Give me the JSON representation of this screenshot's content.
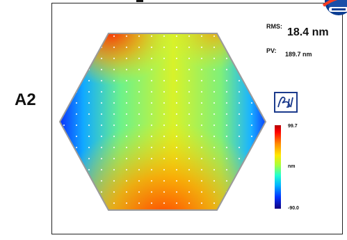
{
  "panel_label": "A2",
  "stats": {
    "rms_label": "RMS:",
    "rms_value": "18.4 nm",
    "pv_label": "PV:",
    "pv_value": "189.7 nm"
  },
  "colorbar": {
    "max": "99.7",
    "unit": "nm",
    "min": "-90.0"
  },
  "logos": {
    "top_right": "nasa-logo",
    "manufacturer": "ball-logo"
  },
  "colors": {
    "high": "#ff0000",
    "mid": "#ffe800",
    "low": "#0033ff"
  }
}
